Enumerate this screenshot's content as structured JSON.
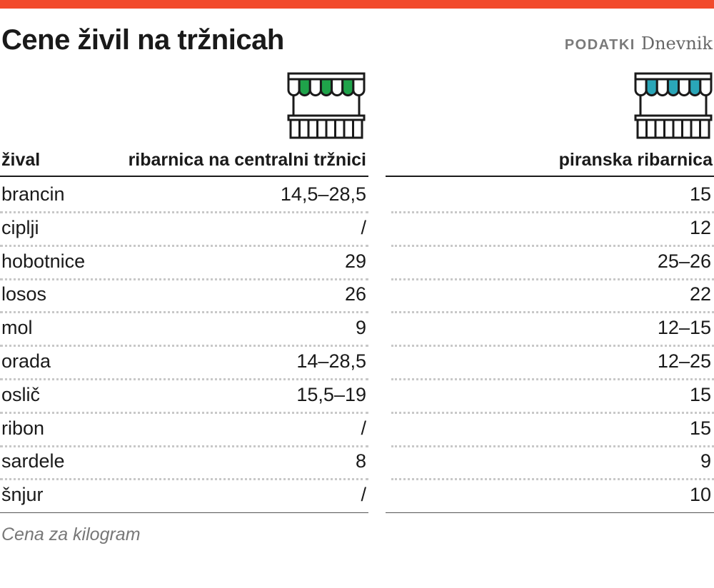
{
  "colors": {
    "accent": "#f24a2c",
    "stall_left": "#1fa34a",
    "stall_right": "#2aa6b8",
    "text": "#1a1a1a"
  },
  "header": {
    "title": "Cene živil na tržnicah",
    "source_label": "PODATKI",
    "source_name": "Dnevnik"
  },
  "icons": {
    "left": "market-stall-icon",
    "right": "market-stall-icon"
  },
  "chart_data": {
    "type": "table",
    "columns": [
      "žival",
      "ribarnica na centralni tržnici",
      "piranska ribarnica"
    ],
    "rows": [
      [
        "brancin",
        "14,5–28,5",
        "15"
      ],
      [
        "ciplji",
        "/",
        "12"
      ],
      [
        "hobotnice",
        "29",
        "25–26"
      ],
      [
        "losos",
        "26",
        "22"
      ],
      [
        "mol",
        "9",
        "12–15"
      ],
      [
        "orada",
        "14–28,5",
        "12–25"
      ],
      [
        "oslič",
        "15,5–19",
        "15"
      ],
      [
        "ribon",
        "/",
        "15"
      ],
      [
        "sardele",
        "8",
        "9"
      ],
      [
        "šnjur",
        "/",
        "10"
      ]
    ],
    "note": "Cena za kilogram"
  }
}
